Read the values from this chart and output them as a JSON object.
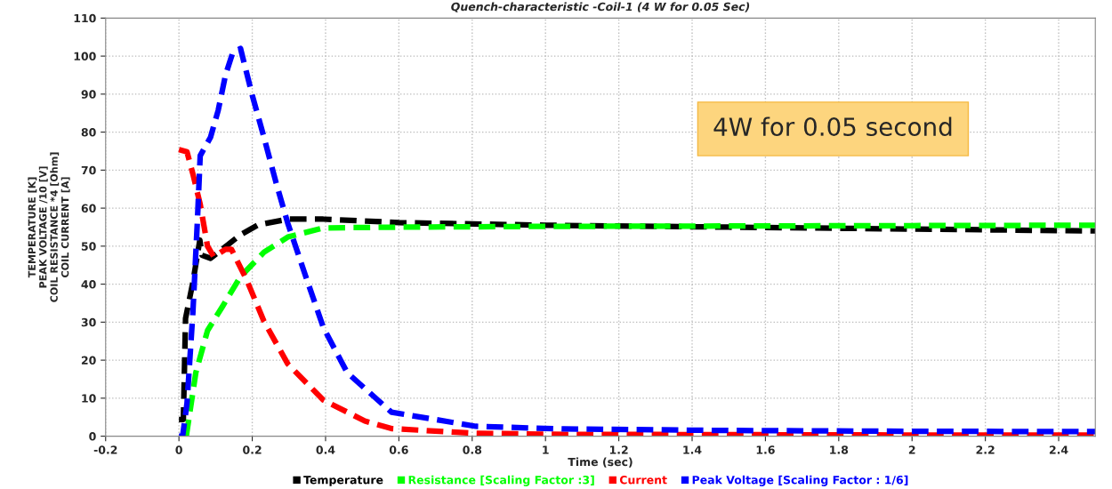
{
  "chart_data": {
    "type": "line",
    "title": "Quench-characteristic -Coil-1 (4 W for 0.05 Sec)",
    "xlabel": "Time (sec)",
    "ylabel": "TEMPERATURE [K]\nPEAK VOLTAGE /10 [V]\nCOIL RESISTANCE *4 [Ohm]\nCOIL CURRENT [A]",
    "annotations": [
      "4W for 0.05 second"
    ],
    "xlim": [
      -0.2,
      2.5
    ],
    "xticks": [
      -0.2,
      0,
      0.2,
      0.4,
      0.6,
      0.8,
      1,
      1.2,
      1.4,
      1.6,
      1.8,
      2,
      2.2,
      2.4
    ],
    "ylim": [
      0,
      110
    ],
    "yticks": [
      0,
      10,
      20,
      30,
      40,
      50,
      60,
      70,
      80,
      90,
      100,
      110
    ],
    "grid": true,
    "legend": "bottom",
    "line_style": "dashed",
    "marker": "none",
    "series": [
      {
        "name": "Temperature",
        "color": "#000000",
        "x": [
          0,
          0.012,
          0.018,
          0.038,
          0.057,
          0.063,
          0.086,
          0.118,
          0.168,
          0.216,
          0.297,
          0.394,
          0.6,
          1,
          1.5,
          2,
          2.5
        ],
        "values": [
          4.4,
          4.4,
          31,
          40.5,
          51.6,
          47.6,
          46.8,
          49.2,
          53,
          55.6,
          57.1,
          57.1,
          56.2,
          55.5,
          55,
          54.5,
          54
        ]
      },
      {
        "name": "Resistance [Scaling Factor :3]",
        "color": "#00ff00",
        "x": [
          0.02,
          0.046,
          0.078,
          0.118,
          0.168,
          0.232,
          0.297,
          0.394,
          0.6,
          1,
          1.5,
          2,
          2.5
        ],
        "values": [
          0,
          16.7,
          27.8,
          34,
          42,
          48.4,
          52.4,
          54.8,
          55,
          55.2,
          55.3,
          55.4,
          55.5
        ]
      },
      {
        "name": "Current",
        "color": "#ff0000",
        "x": [
          0,
          0.022,
          0.038,
          0.058,
          0.078,
          0.095,
          0.127,
          0.143,
          0.184,
          0.232,
          0.297,
          0.394,
          0.507,
          0.58,
          0.8,
          1,
          1.5,
          2,
          2.5
        ],
        "values": [
          75.4,
          74.8,
          69,
          61,
          50,
          47.2,
          49.2,
          49.2,
          41.3,
          30.2,
          19,
          9.5,
          4,
          2,
          0.8,
          0.5,
          0.4,
          0.3,
          0.3
        ]
      },
      {
        "name": "Peak Voltage [Scaling Factor : 1/6]",
        "color": "#0000ff",
        "x": [
          0,
          0.01,
          0.022,
          0.038,
          0.05,
          0.058,
          0.086,
          0.107,
          0.127,
          0.147,
          0.168,
          0.2,
          0.232,
          0.265,
          0.297,
          0.346,
          0.394,
          0.459,
          0.58,
          0.81,
          1.05,
          1.5,
          2,
          2.5
        ],
        "values": [
          0,
          0,
          8.7,
          32.5,
          56,
          73.8,
          78.6,
          85.7,
          95,
          101,
          102,
          89.7,
          78.6,
          66.7,
          56,
          42,
          28.6,
          16.7,
          6.3,
          2.6,
          1.9,
          1.5,
          1.3,
          1.2
        ]
      }
    ]
  }
}
